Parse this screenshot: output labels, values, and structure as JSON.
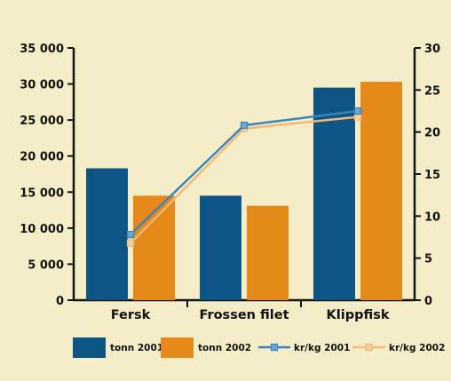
{
  "chart_data": {
    "type": "bar",
    "categories": [
      "Fersk",
      "Frossen filet",
      "Klippfisk"
    ],
    "series": [
      {
        "name": "tonn 2001",
        "type": "bar",
        "axis": "left",
        "values": [
          18300,
          14500,
          29500
        ]
      },
      {
        "name": "tonn 2002",
        "type": "bar",
        "axis": "left",
        "values": [
          14500,
          13100,
          30300
        ]
      },
      {
        "name": "kr/kg 2001",
        "type": "line",
        "axis": "right",
        "values": [
          7.8,
          20.8,
          22.5
        ]
      },
      {
        "name": "kr/kg 2002",
        "type": "line",
        "axis": "right",
        "values": [
          6.8,
          20.4,
          21.8
        ]
      }
    ],
    "y_left": {
      "min": 0,
      "max": 35000,
      "ticks": [
        "0",
        "5 000",
        "10 000",
        "15 000",
        "20 000",
        "25 000",
        "30 000",
        "35 000"
      ]
    },
    "y_right": {
      "min": 0,
      "max": 30,
      "ticks": [
        "0",
        "5",
        "10",
        "15",
        "20",
        "25",
        "30"
      ]
    },
    "legend_position": "bottom",
    "colors": {
      "tonn_2001": "#0d5585",
      "tonn_2002": "#e58a1a",
      "kr_kg_2001": "#3d84b8",
      "kr_kg_2002": "#f2b978",
      "background": "#f4edc8"
    },
    "grid": false
  }
}
